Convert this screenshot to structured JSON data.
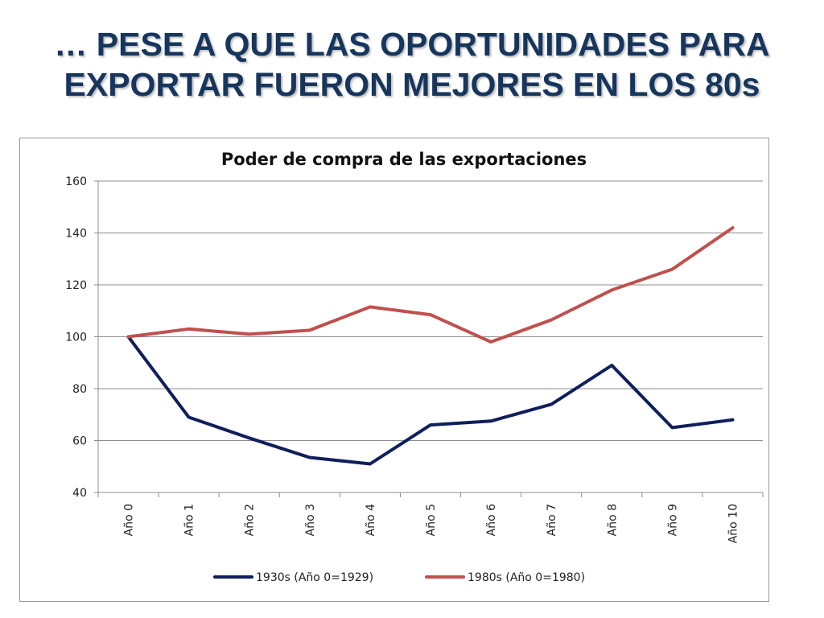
{
  "slide": {
    "title_line1": "… PESE A QUE LAS OPORTUNIDADES PARA",
    "title_line2": "EXPORTAR FUERON MEJORES EN LOS 80s",
    "title_color": "#17365d"
  },
  "chart_data": {
    "type": "line",
    "title": "Poder de compra de las exportaciones",
    "xlabel": "",
    "ylabel": "",
    "categories": [
      "Año 0",
      "Año 1",
      "Año 2",
      "Año 3",
      "Año 4",
      "Año 5",
      "Año 6",
      "Año 7",
      "Año 8",
      "Año 9",
      "Año 10"
    ],
    "ylim": [
      40,
      160
    ],
    "yticks": [
      40,
      60,
      80,
      100,
      120,
      140,
      160
    ],
    "grid": true,
    "legend": "bottom",
    "series": [
      {
        "name": "1930s (Año 0=1929)",
        "color": "#0f1f5c",
        "values": [
          100,
          69,
          61,
          53.5,
          51,
          66,
          67.5,
          74,
          89,
          65,
          68
        ]
      },
      {
        "name": "1980s (Año 0=1980)",
        "color": "#c0504d",
        "values": [
          100,
          103,
          101,
          102.5,
          111.5,
          108.5,
          98,
          106.5,
          118,
          126,
          142
        ]
      }
    ]
  }
}
